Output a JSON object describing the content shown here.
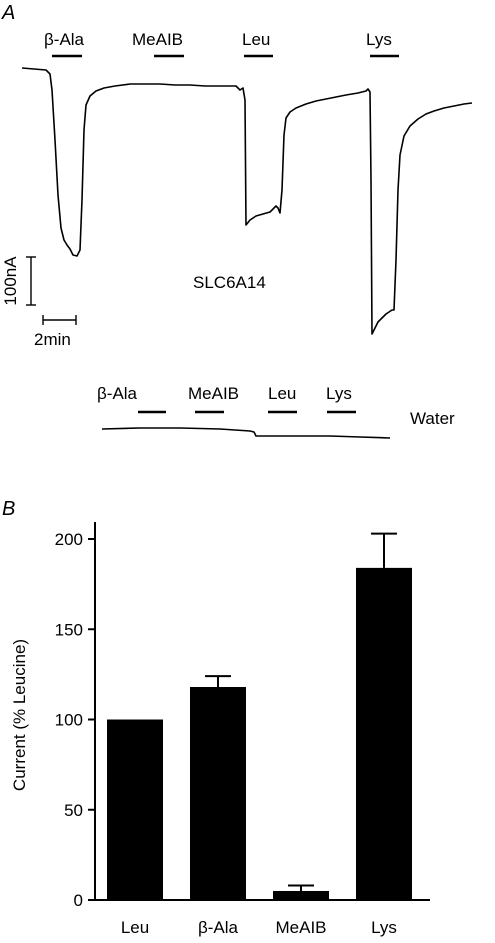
{
  "panel_a": {
    "letter": "A",
    "top_labels": [
      "β-Ala",
      "MeAIB",
      "Leu",
      "Lys"
    ],
    "construct": "SLC6A14",
    "scale_current": "100nA",
    "scale_time": "2min",
    "bottom_labels": [
      "β-Ala",
      "MeAIB",
      "Leu",
      "Lys"
    ],
    "control": "Water"
  },
  "chart_data": {
    "panel_letter": "B",
    "type": "bar",
    "categories": [
      "Leu",
      "β-Ala",
      "MeAIB",
      "Lys"
    ],
    "values": [
      100,
      118,
      5,
      184
    ],
    "errors": [
      0,
      6,
      3,
      19
    ],
    "ylabel": "Current (% Leucine)",
    "yticks": [
      0,
      50,
      100,
      150,
      200
    ],
    "ylim": [
      0,
      210
    ],
    "bar_color": "#000000",
    "grid": false
  }
}
